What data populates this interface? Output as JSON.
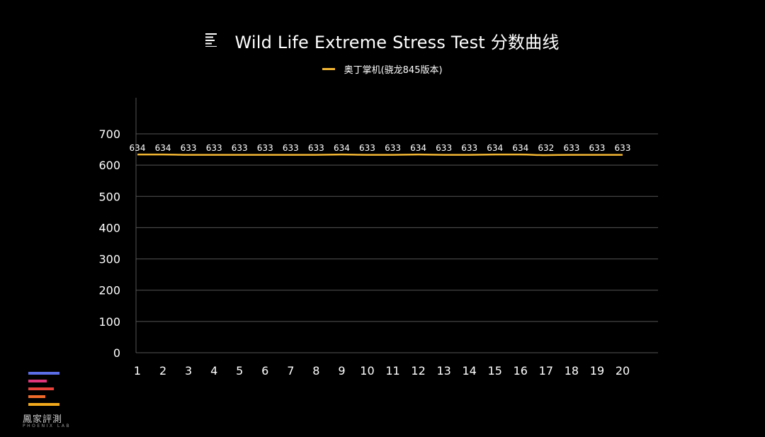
{
  "header": {
    "title": "Wild Life Extreme Stress Test 分数曲线",
    "icon": "list-align-icon"
  },
  "legend": {
    "label": "奥丁掌机(骁龙845版本)"
  },
  "colors": {
    "background": "#000000",
    "series": "#f2b632",
    "grid": "#555555",
    "text": "#ffffff",
    "logo_bars": [
      "#5b6ee8",
      "#e0357b",
      "#e8423a",
      "#f06a2a",
      "#f2a91c"
    ]
  },
  "logo": {
    "name": "鳳家評測",
    "sub": "PHOENIX LAB"
  },
  "chart_data": {
    "type": "line",
    "title": "Wild Life Extreme Stress Test 分数曲线",
    "xlabel": "",
    "ylabel": "",
    "categories": [
      "1",
      "2",
      "3",
      "4",
      "5",
      "6",
      "7",
      "8",
      "9",
      "10",
      "11",
      "12",
      "13",
      "14",
      "15",
      "16",
      "17",
      "18",
      "19",
      "20"
    ],
    "series": [
      {
        "name": "奥丁掌机(骁龙845版本)",
        "values": [
          634,
          634,
          633,
          633,
          633,
          633,
          633,
          633,
          634,
          633,
          633,
          634,
          633,
          633,
          634,
          634,
          632,
          633,
          633,
          633
        ]
      }
    ],
    "ylim": [
      0,
      700
    ],
    "yticks": [
      0,
      100,
      200,
      300,
      400,
      500,
      600,
      700
    ],
    "grid": true,
    "data_labels": true,
    "legend_position": "top"
  }
}
